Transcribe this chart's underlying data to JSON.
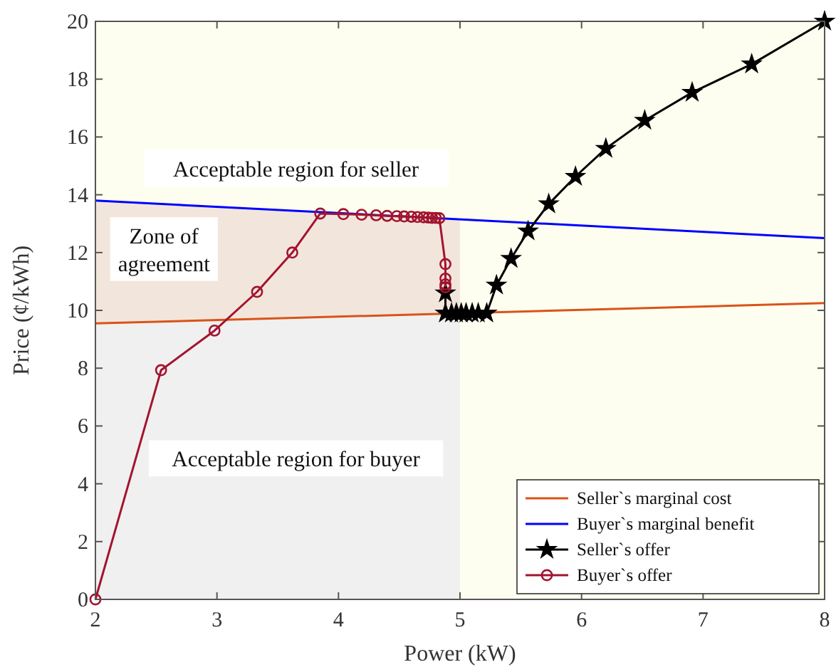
{
  "chart_data": {
    "type": "line",
    "xlabel": "Power (kW)",
    "ylabel": "Price (¢/kWh)",
    "xlim": [
      2,
      8
    ],
    "ylim": [
      0,
      20
    ],
    "xticks": [
      2,
      3,
      4,
      5,
      6,
      7,
      8
    ],
    "yticks": [
      0,
      2,
      4,
      6,
      8,
      10,
      12,
      14,
      16,
      18,
      20
    ],
    "grid": false,
    "legend": "bottom right",
    "series": [
      {
        "name": "Seller`s marginal cost",
        "color": "#d95319",
        "marker": "none",
        "x": [
          2,
          8
        ],
        "values": [
          9.55,
          10.25
        ]
      },
      {
        "name": "Buyer`s marginal benefit",
        "color": "#0000ff",
        "marker": "none",
        "x": [
          2,
          8
        ],
        "values": [
          13.8,
          12.5
        ]
      },
      {
        "name": "Seller`s offer",
        "color": "#000000",
        "marker": "star",
        "x": [
          4.88,
          4.88,
          4.93,
          4.97,
          5.01,
          5.05,
          5.1,
          5.15,
          5.22,
          5.3,
          5.42,
          5.56,
          5.73,
          5.95,
          6.2,
          6.52,
          6.91,
          7.4,
          8
        ],
        "values": [
          10.6,
          9.9,
          9.9,
          9.9,
          9.9,
          9.9,
          9.9,
          9.9,
          9.9,
          10.87,
          11.79,
          12.74,
          13.68,
          14.63,
          15.6,
          16.57,
          17.54,
          18.52,
          20
        ]
      },
      {
        "name": "Buyer`s offer",
        "color": "#a2142f",
        "marker": "circle",
        "x": [
          2,
          2.54,
          2.98,
          3.33,
          3.62,
          3.85,
          4.04,
          4.19,
          4.31,
          4.4,
          4.48,
          4.54,
          4.6,
          4.65,
          4.7,
          4.74,
          4.77,
          4.8,
          4.83,
          4.88,
          4.88,
          4.88,
          4.88
        ],
        "values": [
          0,
          7.93,
          9.3,
          10.64,
          12.0,
          13.35,
          13.33,
          13.31,
          13.29,
          13.27,
          13.26,
          13.25,
          13.24,
          13.23,
          13.22,
          13.21,
          13.2,
          13.2,
          13.19,
          11.6,
          11.1,
          10.9,
          10.8
        ]
      }
    ],
    "bands": [
      {
        "axis": "x",
        "from": 2,
        "to": 5,
        "color": "#f0f0f0"
      }
    ],
    "annotations": [
      "Acceptable region for seller",
      "Zone of\nagreement",
      "Acceptable region for buyer"
    ]
  }
}
